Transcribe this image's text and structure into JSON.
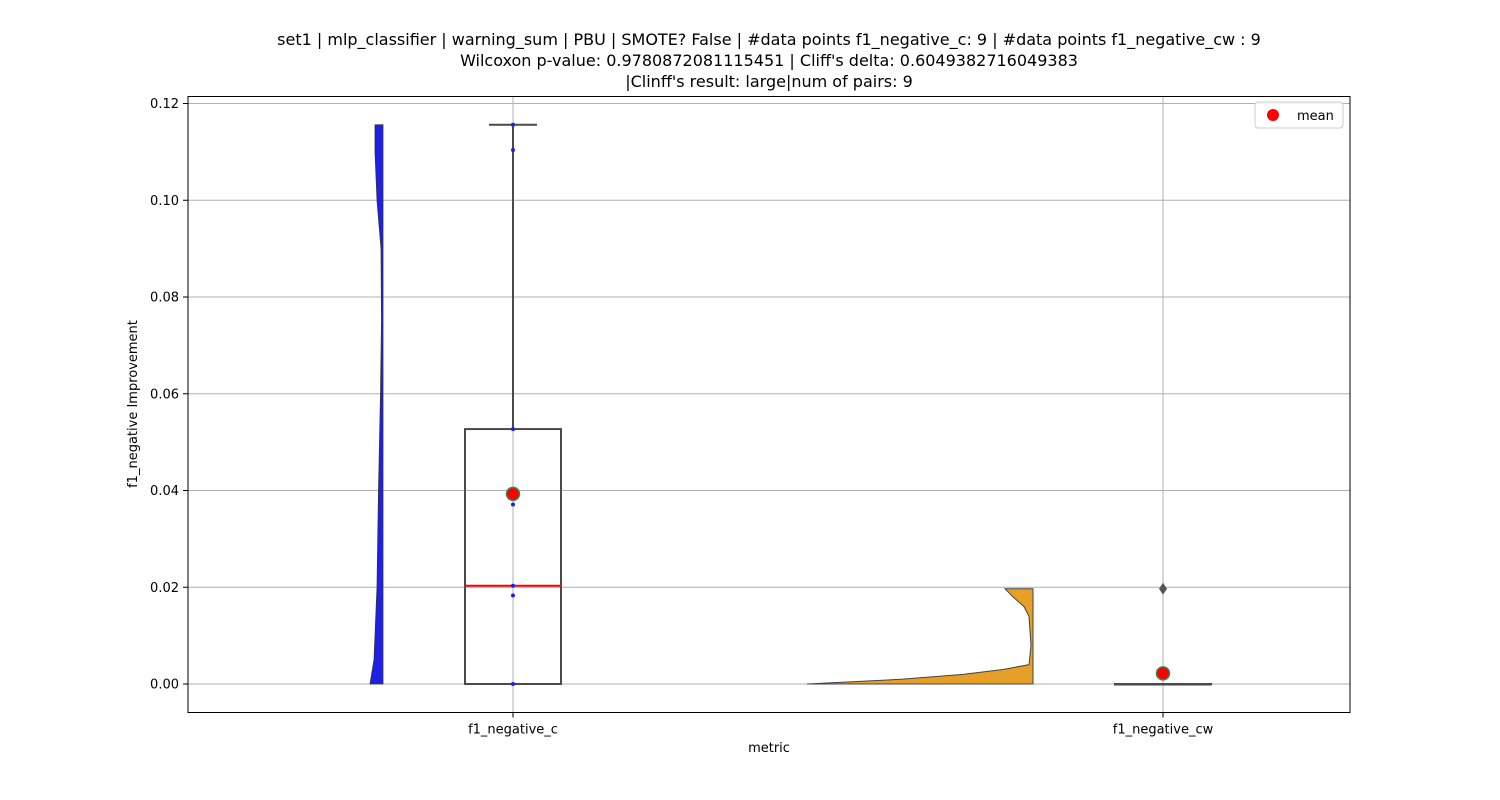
{
  "chart_data": {
    "type": "violin",
    "title_lines": [
      "set1 | mlp_classifier | warning_sum | PBU | SMOTE? False | #data points f1_negative_c: 9 | #data points f1_negative_cw : 9",
      "Wilcoxon p-value: 0.9780872081115451 | Cliff's delta: 0.6049382716049383",
      "|Clinff's result: large|num of pairs: 9"
    ],
    "xlabel": "metric",
    "ylabel": "f1_negative Improvement",
    "categories": [
      "f1_negative_c",
      "f1_negative_cw"
    ],
    "ylim": [
      -0.0057,
      0.1215
    ],
    "yticks": [
      0.0,
      0.02,
      0.04,
      0.06,
      0.08,
      0.1,
      0.12
    ],
    "ytick_labels": [
      "0.00",
      "0.02",
      "0.04",
      "0.06",
      "0.08",
      "0.10",
      "0.12"
    ],
    "grid": true,
    "legend": {
      "label": "mean",
      "position": "top-right"
    },
    "colors": {
      "violin_c": "#1f1fe6",
      "violin_cw": "#e69f27",
      "median": "#ff0000",
      "mean": "#ff0000",
      "mean_edge": "#2e8b57",
      "box_edge": "#4a4a4a",
      "points": "#1f1fe6",
      "grid": "#b0b0b0"
    },
    "series": [
      {
        "category": "f1_negative_c",
        "points": [
          0.0,
          0.0183,
          0.0203,
          0.0371,
          0.0527,
          0.1104,
          0.1156
        ],
        "box": {
          "q1": 0.0,
          "median": 0.0203,
          "q3": 0.0527,
          "whisker_low": 0.0,
          "whisker_high": 0.1156
        },
        "mean": 0.0393,
        "outliers": []
      },
      {
        "category": "f1_negative_cw",
        "points": [],
        "box": {
          "q1": 0.0,
          "median": 0.0,
          "q3": 0.0,
          "whisker_low": 0.0,
          "whisker_high": 0.0
        },
        "mean": 0.0022,
        "outliers": [
          0.0197
        ]
      }
    ]
  }
}
